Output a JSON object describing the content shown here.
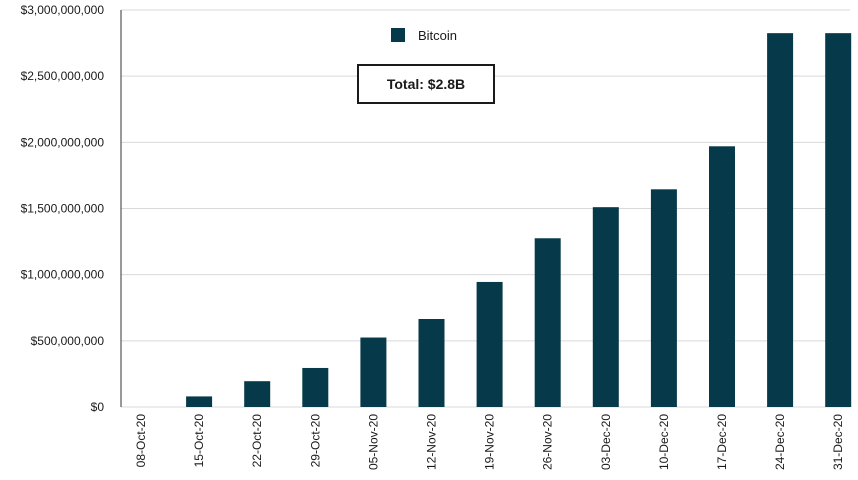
{
  "chart_data": {
    "type": "bar",
    "title": "",
    "xlabel": "",
    "ylabel": "",
    "categories": [
      "08-Oct-20",
      "15-Oct-20",
      "22-Oct-20",
      "29-Oct-20",
      "05-Nov-20",
      "12-Nov-20",
      "19-Nov-20",
      "26-Nov-20",
      "03-Dec-20",
      "10-Dec-20",
      "17-Dec-20",
      "24-Dec-20",
      "31-Dec-20"
    ],
    "series": [
      {
        "name": "Bitcoin",
        "color": "#06394a",
        "values": [
          0,
          80000000,
          195000000,
          295000000,
          525000000,
          665000000,
          945000000,
          1275000000,
          1510000000,
          1645000000,
          1970000000,
          2825000000,
          2825000000
        ]
      }
    ],
    "ylim": [
      0,
      3000000000
    ],
    "yticks": [
      0,
      500000000,
      1000000000,
      1500000000,
      2000000000,
      2500000000,
      3000000000
    ],
    "ytick_labels": [
      "$0",
      "$500,000,000",
      "$1,000,000,000",
      "$1,500,000,000",
      "$2,000,000,000",
      "$2,500,000,000",
      "$3,000,000,000"
    ],
    "grid": true,
    "legend": {
      "position": "top-center",
      "entries": [
        "Bitcoin"
      ]
    },
    "annotations": [
      {
        "text": "Total: $2.8B"
      }
    ]
  }
}
